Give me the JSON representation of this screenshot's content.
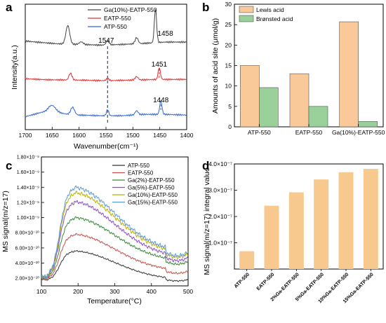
{
  "figure": {
    "panels": [
      "a",
      "b",
      "c",
      "d"
    ]
  },
  "chart_data": [
    {
      "panel": "a",
      "type": "line",
      "xlabel": "Wavenumber(cm⁻¹)",
      "ylabel": "Intensity(a.u.)",
      "xlim": [
        1700,
        1400
      ],
      "x_reversed": true,
      "x_ticks": [
        "1700",
        "1650",
        "1600",
        "1550",
        "1500",
        "1450",
        "1400"
      ],
      "legend_position": "top-right",
      "series": [
        {
          "name": "Ga(10%)-EATP-550",
          "color": "#444444",
          "offset": 2.15,
          "baseline": [
            [
              1700,
              0.15
            ],
            [
              1680,
              0.12
            ],
            [
              1640,
              0.07
            ],
            [
              1600,
              0.05
            ],
            [
              1560,
              0.03
            ],
            [
              1520,
              0.05
            ],
            [
              1480,
              0.08
            ],
            [
              1440,
              0.12
            ],
            [
              1400,
              0.12
            ]
          ],
          "peaks": [
            [
              1621,
              0.55,
              5
            ],
            [
              1596,
              0.08,
              5
            ],
            [
              1547,
              0.12,
              4
            ],
            [
              1493,
              0.18,
              4
            ],
            [
              1458,
              1.0,
              3
            ]
          ]
        },
        {
          "name": "EATP-550",
          "color": "#e03030",
          "offset": 1.1,
          "baseline": [
            [
              1700,
              0.08
            ],
            [
              1660,
              0.05
            ],
            [
              1600,
              0.04
            ],
            [
              1550,
              0.02
            ],
            [
              1500,
              0.04
            ],
            [
              1450,
              0.06
            ],
            [
              1400,
              0.06
            ]
          ],
          "peaks": [
            [
              1616,
              0.2,
              4
            ],
            [
              1547,
              0.06,
              4
            ],
            [
              1493,
              0.1,
              4
            ],
            [
              1451,
              0.35,
              3
            ]
          ]
        },
        {
          "name": "ATP-550",
          "color": "#3366cc",
          "offset": 0.0,
          "baseline": [
            [
              1700,
              0.05
            ],
            [
              1670,
              0.18
            ],
            [
              1655,
              0.22
            ],
            [
              1620,
              0.12
            ],
            [
              1600,
              0.1
            ],
            [
              1560,
              0.08
            ],
            [
              1520,
              0.08
            ],
            [
              1480,
              0.12
            ],
            [
              1440,
              0.12
            ],
            [
              1400,
              0.1
            ]
          ],
          "peaks": [
            [
              1650,
              0.18,
              9
            ],
            [
              1612,
              0.22,
              5
            ],
            [
              1547,
              0.18,
              3
            ],
            [
              1493,
              0.12,
              4
            ],
            [
              1448,
              0.4,
              3
            ]
          ]
        }
      ],
      "annotations": [
        {
          "text": "1547",
          "x": 1547
        },
        {
          "text": "1458",
          "x": 1458
        },
        {
          "text": "1451",
          "x": 1451
        },
        {
          "text": "1448",
          "x": 1448
        }
      ]
    },
    {
      "panel": "b",
      "type": "bar",
      "ylabel": "Amounts of acid site (μmol/g)",
      "ylim": [
        0,
        30
      ],
      "y_ticks": [
        "0",
        "5",
        "10",
        "15",
        "20",
        "25",
        "30"
      ],
      "categories": [
        "ATP-550",
        "EATP-550",
        "Ga(10%)-EATP-550"
      ],
      "legend_position": "top-left",
      "series": [
        {
          "name": "Lewis acid",
          "color": "#f9c99a",
          "values": [
            15.0,
            13.0,
            25.7
          ]
        },
        {
          "name": "Brønsted acid",
          "color": "#9ad09a",
          "values": [
            9.6,
            5.0,
            1.3
          ]
        }
      ]
    },
    {
      "panel": "c",
      "type": "line",
      "xlabel": "Temperature(°C)",
      "ylabel": "MS signal(m/z=17)",
      "xlim": [
        100,
        500
      ],
      "ylim": [
        1e-10,
        1.8e-09
      ],
      "x_ticks": [
        "100",
        "200",
        "300",
        "400",
        "500"
      ],
      "y_ticks": [
        "1.80×10⁻⁹",
        "1.60×10⁻⁹",
        "1.40×10⁻⁹",
        "1.20×10⁻⁹",
        "1.00×10⁻⁹",
        "8.00×10⁻¹⁰",
        "6.00×10⁻¹⁰",
        "4.00×10⁻¹⁰",
        "2.00×10⁻¹⁰"
      ],
      "legend_position": "top-right",
      "series": [
        {
          "name": "ATP-550",
          "color": "#333333",
          "base": 1.7e-10,
          "peak": 5.6e-10,
          "end": 1.8e-10
        },
        {
          "name": "EATP-550",
          "color": "#c0504d",
          "base": 1.8e-10,
          "peak": 7.8e-10,
          "end": 2.9e-10
        },
        {
          "name": "Ga(2%)-EATP-550",
          "color": "#3a8a3a",
          "base": 1.9e-10,
          "peak": 1e-09,
          "end": 4.2e-10
        },
        {
          "name": "Ga(5%)-EATP-550",
          "color": "#8a4fc8",
          "base": 2e-10,
          "peak": 1.21e-09,
          "end": 4.7e-10
        },
        {
          "name": "Ga(10%)-EATP-550",
          "color": "#b9b000",
          "base": 2e-10,
          "peak": 1.33e-09,
          "end": 5.2e-10
        },
        {
          "name": "Ga(15%)-EATP-550",
          "color": "#5a9ad0",
          "base": 2.1e-10,
          "peak": 1.4e-09,
          "end": 5.4e-10
        }
      ]
    },
    {
      "panel": "d",
      "type": "bar",
      "ylabel": "MS signal(m/z=17) integral value",
      "ylim": [
        0,
        4e-07
      ],
      "y_ticks": [
        "1.0×10⁻⁷",
        "2.0×10⁻⁷",
        "3.0×10⁻⁷",
        "4.0×10⁻⁷"
      ],
      "categories": [
        "ATP-550",
        "EATP-550",
        "2%Ga-EATP-550",
        "5%Ga-EATP-550",
        "10%Ga-EATP-550",
        "15%Ga-EATP-550"
      ],
      "values": [
        6.8e-08,
        2.41e-07,
        2.92e-07,
        3.41e-07,
        3.68e-07,
        3.81e-07
      ],
      "bar_color": "#f7c98f"
    }
  ]
}
